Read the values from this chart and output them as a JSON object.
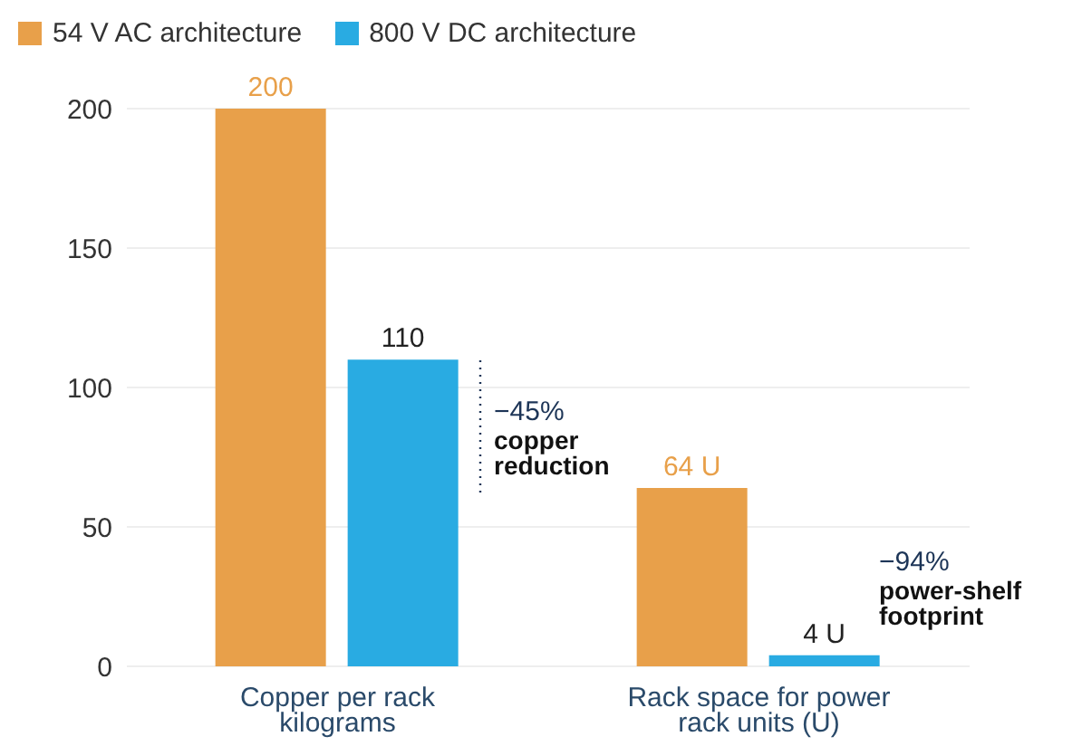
{
  "chart_data": {
    "type": "bar",
    "categories": [
      "Copper per rack\nkilograms",
      "Rack space for power\nrack units (U)"
    ],
    "series": [
      {
        "name": "54 V AC architecture",
        "color": "#e8a04a",
        "values": [
          200,
          64
        ],
        "value_labels": [
          "200",
          "64 U"
        ]
      },
      {
        "name": "800 V DC architecture",
        "color": "#29abe2",
        "values": [
          110,
          4
        ],
        "value_labels": [
          "110",
          "4 U"
        ]
      }
    ],
    "ylim": [
      0,
      200
    ],
    "yticks": [
      0,
      50,
      100,
      150,
      200
    ],
    "grid": "y",
    "legend": "top left",
    "annotations": [
      "−45%",
      "copper reduction",
      "−94%",
      "power-shelf footprint"
    ]
  }
}
